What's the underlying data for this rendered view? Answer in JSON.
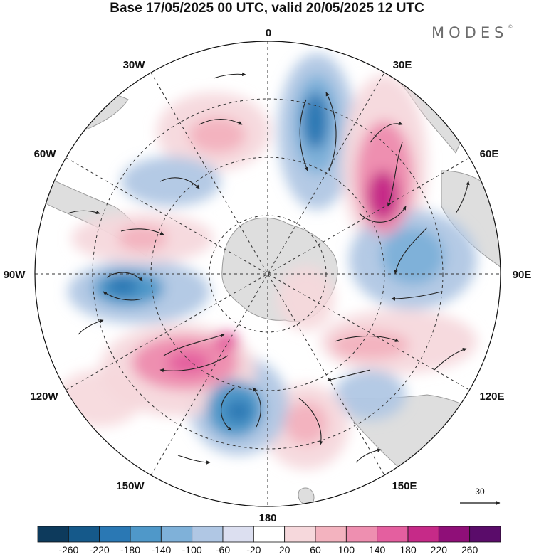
{
  "title": "Base 17/05/2025 00 UTC, valid 20/05/2025 12 UTC",
  "brand": "MODES",
  "brand_mark": "©",
  "projection": "south-polar-stereographic",
  "longitude_labels": {
    "top": "0",
    "top_right": "30E",
    "right_upper": "60E",
    "right": "90E",
    "right_lower": "120E",
    "bottom_right": "150E",
    "bottom": "180",
    "bottom_left": "150W",
    "left_lower": "120W",
    "left": "90W",
    "left_upper": "60W",
    "top_left": "30W"
  },
  "reference_vector": {
    "label": "30"
  },
  "colorbar": {
    "ticks": [
      "-260",
      "-220",
      "-180",
      "-140",
      "-100",
      "-60",
      "-20",
      "20",
      "60",
      "100",
      "140",
      "180",
      "220",
      "260"
    ],
    "colors": [
      "#0d3a5c",
      "#15598a",
      "#2a78b4",
      "#4f98c9",
      "#7fb1d9",
      "#b0c7e4",
      "#dcdff0",
      "#ffffff",
      "#f6d8dc",
      "#f3b3bf",
      "#ee8fb0",
      "#e45f9f",
      "#c62a88",
      "#8f0f78",
      "#5a0c6a"
    ]
  },
  "anomaly_colors": {
    "neg_strong": "#15598a",
    "neg_mid": "#4f98c9",
    "neg_weak": "#b0c7e4",
    "pos_weak": "#f6d8dc",
    "pos_mid": "#ee8fb0",
    "pos_strong": "#c62a88",
    "land": "#dcdcdc"
  }
}
